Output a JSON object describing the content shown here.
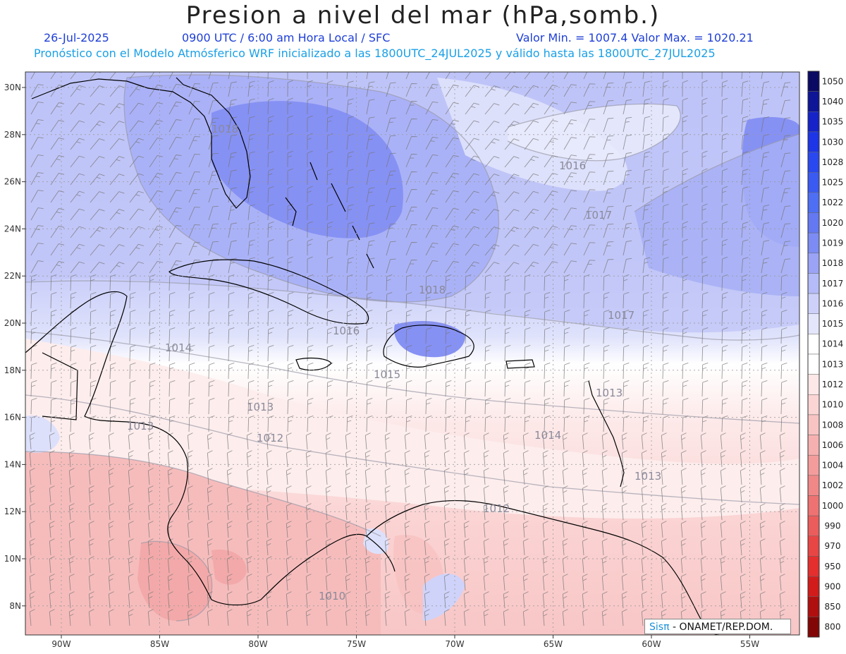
{
  "title": "Presion a nivel del mar (hPa,somb.)",
  "info": {
    "date": "26-Jul-2025",
    "time": "0900 UTC / 6:00 am Hora Local / SFC",
    "minmax": "Valor Min. = 1007.4  Valor Max. = 1020.21",
    "forecast": "Pronóstico con el Modelo Atmósferico WRF inicializado a las 1800UTC_24JUL2025 y válido hasta las  1800UTC_27JUL2025"
  },
  "axes": {
    "lat_labels": [
      "30N",
      "28N",
      "26N",
      "24N",
      "22N",
      "20N",
      "18N",
      "16N",
      "14N",
      "12N",
      "10N",
      "8N"
    ],
    "lat_values": [
      30,
      28,
      26,
      24,
      22,
      20,
      18,
      16,
      14,
      12,
      10,
      8
    ],
    "lon_labels": [
      "90W",
      "85W",
      "80W",
      "75W",
      "70W",
      "65W",
      "60W",
      "55W"
    ],
    "lon_values": [
      -90,
      -85,
      -80,
      -75,
      -70,
      -65,
      -60,
      -55
    ]
  },
  "colorbar": {
    "labels": [
      "1050",
      "1040",
      "1035",
      "1030",
      "1028",
      "1025",
      "1022",
      "1020",
      "1019",
      "1018",
      "1017",
      "1016",
      "1015",
      "1014",
      "1013",
      "1012",
      "1010",
      "1008",
      "1006",
      "1004",
      "1002",
      "1000",
      "990",
      "970",
      "950",
      "900",
      "850",
      "800"
    ],
    "colors": [
      "#0a0a64",
      "#0e1596",
      "#1523c8",
      "#1d35e6",
      "#2a48ef",
      "#3a5af1",
      "#4e6ef3",
      "#6478f2",
      "#7c8cf4",
      "#9aa3f6",
      "#b4bbf8",
      "#cdd1fa",
      "#e4e6fc",
      "#ffffff",
      "#ffffff",
      "#fde7e7",
      "#fbd4d4",
      "#f8c3c3",
      "#f6b0b0",
      "#f49c9c",
      "#f18888",
      "#ee7272",
      "#eb5c5c",
      "#e84545",
      "#e52e2e",
      "#d21b1b",
      "#b00f0f",
      "#820606"
    ]
  },
  "contour_labels": [
    "1018",
    "1016",
    "1017",
    "1018",
    "1016",
    "1014",
    "1017",
    "1013",
    "1015",
    "1013",
    "1013",
    "1012",
    "1014",
    "1013",
    "1012",
    "1010"
  ],
  "credit": {
    "brand": "Sisπ",
    "text": " - ONAMET/REP.DOM."
  }
}
